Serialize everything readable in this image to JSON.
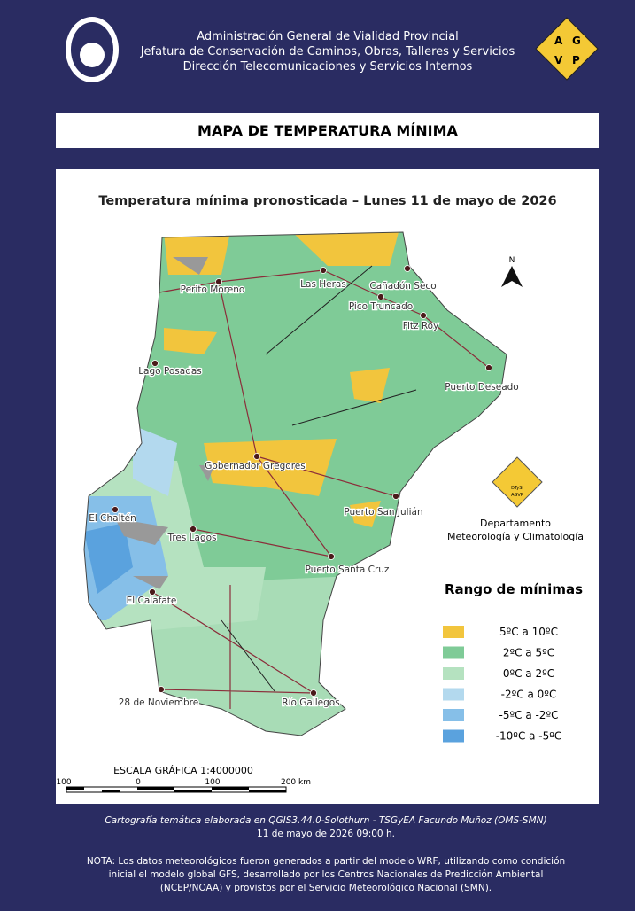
{
  "header": {
    "lines": [
      "Administración General de Vialidad Provincial",
      "Jefatura de Conservación de Caminos, Obras, Talleres y Servicios",
      "Dirección Telecomunicaciones y Servicios Internos"
    ],
    "logo_letters": [
      "A",
      "G",
      "V",
      "P"
    ]
  },
  "title": "MAPA DE TEMPERATURA MÍNIMA",
  "map": {
    "title": "Temperatura mínima pronosticada – Lunes 11 de mayo de 2026",
    "north": "N",
    "cities": [
      "Perito Moreno",
      "Las Heras",
      "Cañadón Seco",
      "Pico Truncado",
      "Fitz Roy",
      "Lago Posadas",
      "Puerto Deseado",
      "Gobernador Gregores",
      "Puerto San Julián",
      "El Chaltén",
      "Tres Lagos",
      "Puerto Santa Cruz",
      "El Calafate",
      "28 de Noviembre",
      "Río Gallegos"
    ],
    "badge": [
      "DTySI",
      "AGVP"
    ],
    "department": [
      "Departamento",
      "Meteorología y Climatología"
    ],
    "legend": {
      "title": "Rango  de mínimas",
      "items": [
        {
          "label": "5ºC a 10ºC",
          "color": "#f2c53d"
        },
        {
          "label": "2ºC a 5ºC",
          "color": "#7fcb97"
        },
        {
          "label": "0ºC a 2ºC",
          "color": "#b5e2c0"
        },
        {
          "label": "-2ºC a 0ºC",
          "color": "#b3d9ee"
        },
        {
          "label": "-5ºC a -2ºC",
          "color": "#86bfe8"
        },
        {
          "label": "-10ºC a -5ºC",
          "color": "#5aa2de"
        }
      ]
    },
    "scale": {
      "title": "ESCALA GRÁFICA 1:4000000",
      "ticks": [
        "100",
        "0",
        "100",
        "200 km"
      ]
    }
  },
  "footer": {
    "credit": [
      "Cartografía temática elaborada en QGIS3.44.0-Solothurn - TSGyEA Facundo Muñoz (OMS-SMN)",
      "11 de mayo de 2026 09:00 h."
    ],
    "note": [
      "NOTA: Los datos meteorológicos fueron generados a partir del modelo WRF, utilizando como condición",
      "inicial el modelo global GFS, desarrollado por los Centros Nacionales de Predicción Ambiental",
      "(NCEP/NOAA) y provistos por el Servicio Meteorológico Nacional (SMN)."
    ]
  }
}
